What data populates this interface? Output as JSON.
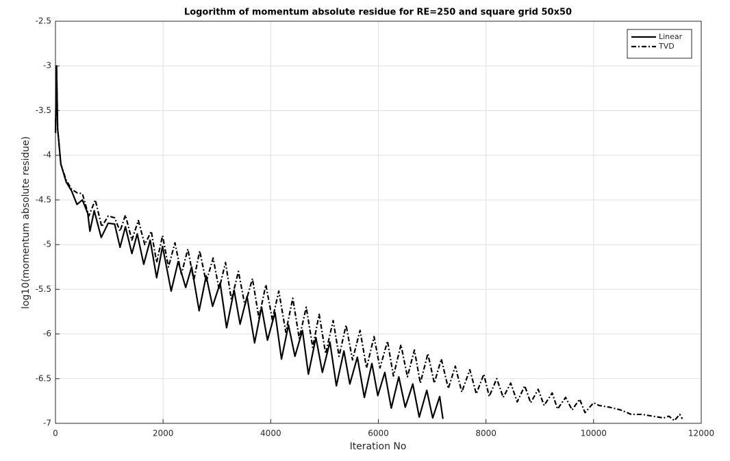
{
  "chart_data": {
    "type": "line",
    "title": "Logorithm of momentum absolute residue for RE=250 and square grid 50x50",
    "xlabel": "Iteration No",
    "ylabel": "log10(momentum absolute residue)",
    "xlim": [
      0,
      12000
    ],
    "ylim": [
      -7,
      -2.5
    ],
    "xticks": [
      0,
      2000,
      4000,
      6000,
      8000,
      10000,
      12000
    ],
    "yticks": [
      -7,
      -6.5,
      -6,
      -5.5,
      -5,
      -4.5,
      -4,
      -3.5,
      -3,
      -2.5
    ],
    "grid": true,
    "legend": "upper right",
    "series": [
      {
        "name": "Linear",
        "color": "#000000",
        "dash": "solid",
        "x": [
          0,
          20,
          40,
          100,
          200,
          300,
          400,
          500,
          600,
          640,
          720,
          850,
          980,
          1100,
          1200,
          1300,
          1420,
          1520,
          1640,
          1760,
          1880,
          1990,
          2150,
          2280,
          2420,
          2530,
          2670,
          2800,
          2920,
          3060,
          3180,
          3320,
          3430,
          3560,
          3700,
          3830,
          3940,
          4080,
          4200,
          4330,
          4450,
          4590,
          4700,
          4840,
          4960,
          5100,
          5220,
          5360,
          5470,
          5610,
          5740,
          5880,
          5990,
          6120,
          6240,
          6380,
          6500,
          6640,
          6760,
          6900,
          7010,
          7140,
          7200
        ],
        "values": [
          -3.75,
          -3.0,
          -3.7,
          -4.1,
          -4.3,
          -4.4,
          -4.55,
          -4.5,
          -4.65,
          -4.85,
          -4.62,
          -4.92,
          -4.76,
          -4.77,
          -5.03,
          -4.8,
          -5.1,
          -4.88,
          -5.22,
          -4.95,
          -5.37,
          -5.02,
          -5.52,
          -5.19,
          -5.48,
          -5.25,
          -5.74,
          -5.35,
          -5.69,
          -5.43,
          -5.93,
          -5.51,
          -5.89,
          -5.58,
          -6.1,
          -5.7,
          -6.07,
          -5.76,
          -6.28,
          -5.9,
          -6.25,
          -5.96,
          -6.45,
          -6.04,
          -6.43,
          -6.09,
          -6.58,
          -6.19,
          -6.56,
          -6.26,
          -6.71,
          -6.33,
          -6.69,
          -6.43,
          -6.83,
          -6.48,
          -6.82,
          -6.56,
          -6.93,
          -6.63,
          -6.94,
          -6.7,
          -6.95
        ]
      },
      {
        "name": "TVD",
        "color": "#000000",
        "dash": "dashdot",
        "x": [
          0,
          20,
          40,
          100,
          200,
          300,
          400,
          500,
          620,
          740,
          860,
          980,
          1100,
          1200,
          1300,
          1420,
          1540,
          1660,
          1780,
          1880,
          1990,
          2100,
          2220,
          2340,
          2460,
          2570,
          2680,
          2800,
          2930,
          3040,
          3160,
          3270,
          3400,
          3520,
          3660,
          3780,
          3910,
          4030,
          4150,
          4280,
          4410,
          4530,
          4660,
          4780,
          4900,
          5020,
          5160,
          5270,
          5400,
          5520,
          5660,
          5780,
          5920,
          6030,
          6170,
          6280,
          6420,
          6540,
          6670,
          6780,
          6920,
          7040,
          7170,
          7300,
          7430,
          7550,
          7700,
          7820,
          7960,
          8060,
          8200,
          8320,
          8460,
          8580,
          8720,
          8830,
          8970,
          9080,
          9230,
          9330,
          9480,
          9600,
          9740,
          9840,
          10000,
          10100,
          10300,
          10500,
          10700,
          10900,
          11100,
          11300,
          11400,
          11500,
          11600,
          11650
        ],
        "values": [
          -3.75,
          -3.0,
          -3.7,
          -4.1,
          -4.28,
          -4.38,
          -4.42,
          -4.43,
          -4.68,
          -4.5,
          -4.8,
          -4.68,
          -4.7,
          -4.85,
          -4.67,
          -4.95,
          -4.73,
          -5.0,
          -4.85,
          -5.2,
          -4.9,
          -5.25,
          -4.98,
          -5.33,
          -5.05,
          -5.4,
          -5.07,
          -5.42,
          -5.15,
          -5.5,
          -5.2,
          -5.62,
          -5.3,
          -5.68,
          -5.38,
          -5.82,
          -5.45,
          -5.84,
          -5.52,
          -5.98,
          -5.6,
          -6.05,
          -5.7,
          -6.15,
          -5.78,
          -6.22,
          -5.85,
          -6.25,
          -5.9,
          -6.29,
          -5.96,
          -6.38,
          -6.03,
          -6.38,
          -6.08,
          -6.47,
          -6.12,
          -6.48,
          -6.18,
          -6.55,
          -6.22,
          -6.55,
          -6.28,
          -6.61,
          -6.36,
          -6.65,
          -6.4,
          -6.67,
          -6.45,
          -6.7,
          -6.5,
          -6.71,
          -6.55,
          -6.76,
          -6.58,
          -6.77,
          -6.62,
          -6.8,
          -6.66,
          -6.84,
          -6.71,
          -6.85,
          -6.73,
          -6.88,
          -6.77,
          -6.8,
          -6.82,
          -6.85,
          -6.9,
          -6.9,
          -6.92,
          -6.94,
          -6.92,
          -6.97,
          -6.9,
          -6.95
        ]
      }
    ]
  }
}
